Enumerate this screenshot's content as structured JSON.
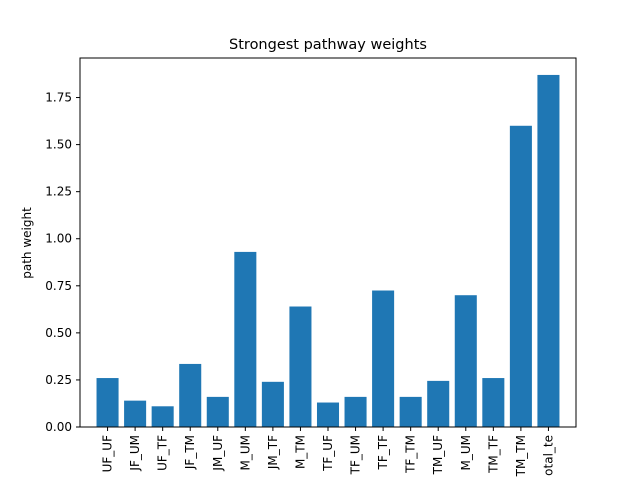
{
  "chart_data": {
    "type": "bar",
    "title": "Strongest pathway weights",
    "xlabel": "",
    "ylabel": "path weight",
    "ylim": [
      0,
      1.96
    ],
    "yticks": [
      0.0,
      0.25,
      0.5,
      0.75,
      1.0,
      1.25,
      1.5,
      1.75
    ],
    "ytick_labels": [
      "0.00",
      "0.25",
      "0.50",
      "0.75",
      "1.00",
      "1.25",
      "1.50",
      "1.75"
    ],
    "categories": [
      "UF_UF",
      "JF_UM",
      "UF_TF",
      "JF_TM",
      "JM_UF",
      "M_UM",
      "JM_TF",
      "M_TM",
      "TF_UF",
      "TF_UM",
      "TF_TF",
      "TF_TM",
      "TM_UF",
      "M_UM",
      "TM_TF",
      "TM_TM",
      "otal_te"
    ],
    "values": [
      0.26,
      0.14,
      0.11,
      0.335,
      0.16,
      0.93,
      0.24,
      0.64,
      0.13,
      0.16,
      0.725,
      0.16,
      0.245,
      0.7,
      0.26,
      1.6,
      1.87
    ],
    "bar_color": "#1f77b4",
    "grid": false,
    "legend": "none"
  }
}
